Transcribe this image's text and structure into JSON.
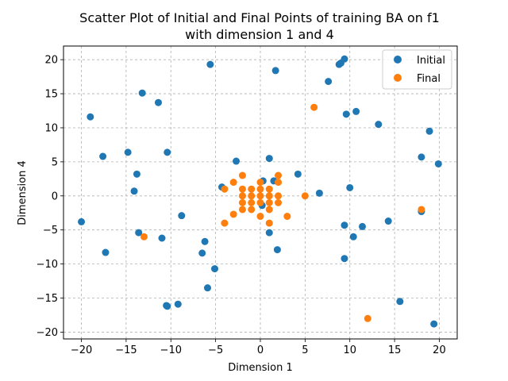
{
  "chart_data": {
    "type": "scatter",
    "title_lines": [
      "Scatter Plot of Initial and Final Points of training BA on f1",
      "with dimension 1 and 4"
    ],
    "xlabel": "Dimension 1",
    "ylabel": "Dimension 4",
    "xlim": [
      -22,
      22
    ],
    "ylim": [
      -21,
      22
    ],
    "xticks": [
      -20,
      -15,
      -10,
      -5,
      0,
      5,
      10,
      15,
      20
    ],
    "yticks": [
      -20,
      -15,
      -10,
      -5,
      0,
      5,
      10,
      15,
      20
    ],
    "grid": true,
    "legend_position": "top-right",
    "series": [
      {
        "name": "Initial",
        "color": "#1f77b4",
        "points": [
          [
            -20.0,
            -3.8
          ],
          [
            -19.0,
            11.6
          ],
          [
            -17.6,
            5.8
          ],
          [
            -17.3,
            -8.3
          ],
          [
            -14.8,
            6.4
          ],
          [
            -14.1,
            0.7
          ],
          [
            -13.8,
            3.2
          ],
          [
            -13.6,
            -5.4
          ],
          [
            -13.2,
            15.1
          ],
          [
            -11.4,
            13.7
          ],
          [
            -11.0,
            -6.2
          ],
          [
            -10.4,
            6.4
          ],
          [
            -10.5,
            -16.1
          ],
          [
            -10.4,
            -16.2
          ],
          [
            -9.2,
            -15.9
          ],
          [
            -8.8,
            -2.9
          ],
          [
            -6.5,
            -8.4
          ],
          [
            -6.2,
            -6.7
          ],
          [
            -5.9,
            -13.5
          ],
          [
            -5.6,
            19.3
          ],
          [
            -5.1,
            -10.7
          ],
          [
            -4.3,
            1.3
          ],
          [
            -2.7,
            5.1
          ],
          [
            0.3,
            2.2
          ],
          [
            0.2,
            -1.4
          ],
          [
            1.0,
            5.5
          ],
          [
            1.0,
            -5.4
          ],
          [
            1.5,
            2.2
          ],
          [
            1.7,
            18.4
          ],
          [
            1.9,
            -7.9
          ],
          [
            4.2,
            3.2
          ],
          [
            6.6,
            0.4
          ],
          [
            7.6,
            16.8
          ],
          [
            8.8,
            19.3
          ],
          [
            9.0,
            19.5
          ],
          [
            9.4,
            20.1
          ],
          [
            9.4,
            -4.3
          ],
          [
            9.4,
            -9.2
          ],
          [
            9.6,
            12.0
          ],
          [
            10.0,
            1.2
          ],
          [
            10.4,
            -6.0
          ],
          [
            10.7,
            12.4
          ],
          [
            11.4,
            -4.5
          ],
          [
            13.2,
            10.5
          ],
          [
            14.3,
            -3.7
          ],
          [
            15.6,
            -15.5
          ],
          [
            18.0,
            5.7
          ],
          [
            18.0,
            -2.3
          ],
          [
            18.9,
            9.5
          ],
          [
            19.4,
            -18.8
          ],
          [
            19.9,
            4.7
          ]
        ]
      },
      {
        "name": "Final",
        "color": "#ff7f0e",
        "points": [
          [
            -13.0,
            -6.0
          ],
          [
            -4.0,
            1.0
          ],
          [
            -4.0,
            -4.0
          ],
          [
            -3.0,
            2.0
          ],
          [
            -3.0,
            -2.7
          ],
          [
            -2.0,
            3.0
          ],
          [
            -2.0,
            1.0
          ],
          [
            -2.0,
            0.0
          ],
          [
            -2.0,
            -1.0
          ],
          [
            -2.0,
            -2.0
          ],
          [
            -1.0,
            1.0
          ],
          [
            -1.0,
            0.0
          ],
          [
            -1.0,
            -1.0
          ],
          [
            -1.0,
            -2.0
          ],
          [
            0.0,
            2.0
          ],
          [
            0.0,
            1.0
          ],
          [
            0.0,
            0.0
          ],
          [
            0.0,
            -1.0
          ],
          [
            0.0,
            -3.0
          ],
          [
            1.0,
            1.0
          ],
          [
            1.0,
            0.0
          ],
          [
            1.0,
            -1.0
          ],
          [
            1.0,
            -2.0
          ],
          [
            1.0,
            -4.0
          ],
          [
            2.0,
            3.0
          ],
          [
            2.0,
            2.0
          ],
          [
            2.0,
            0.0
          ],
          [
            2.0,
            -1.0
          ],
          [
            3.0,
            -3.0
          ],
          [
            5.0,
            0.0
          ],
          [
            6.0,
            13.0
          ],
          [
            12.0,
            -18.0
          ],
          [
            18.0,
            -2.0
          ]
        ]
      }
    ]
  }
}
